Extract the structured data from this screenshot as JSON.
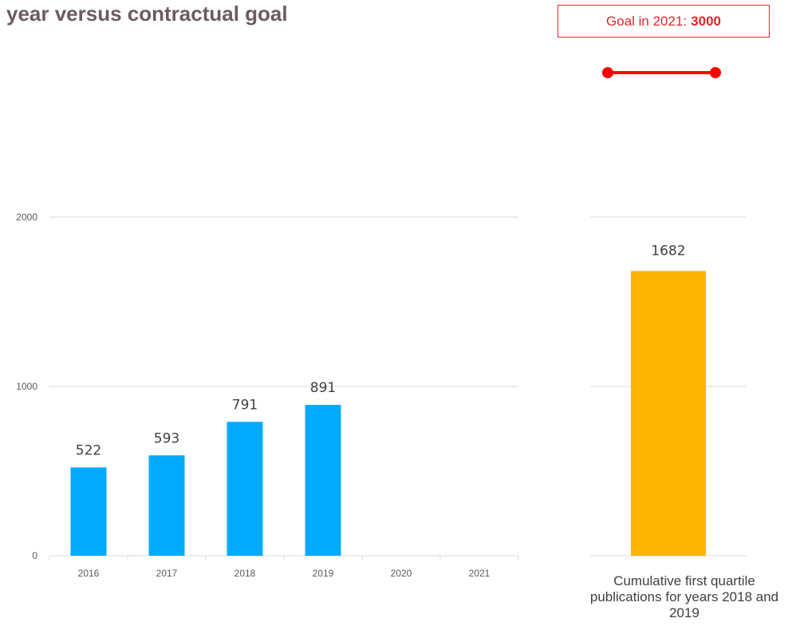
{
  "title": "year versus contractual goal",
  "goal": {
    "label": "Goal in 2021:",
    "value": "3000",
    "color": "#ff0000"
  },
  "chart_data": [
    {
      "type": "bar",
      "categories": [
        "2016",
        "2017",
        "2018",
        "2019",
        "2020",
        "2021"
      ],
      "values": [
        522,
        593,
        791,
        891,
        null,
        null
      ],
      "data_labels": [
        "522",
        "593",
        "791",
        "891",
        "",
        ""
      ],
      "ylim": [
        0,
        2000
      ],
      "yticks": [
        "0",
        "1000",
        "2000"
      ],
      "grid": true,
      "color": "#00aaff"
    },
    {
      "type": "bar",
      "categories": [
        ""
      ],
      "values": [
        1682
      ],
      "data_labels": [
        "1682"
      ],
      "ylim": [
        0,
        2000
      ],
      "grid": true,
      "color": "#fbb400",
      "caption": "Cumulative first quartile publications for years 2018 and 2019"
    }
  ]
}
